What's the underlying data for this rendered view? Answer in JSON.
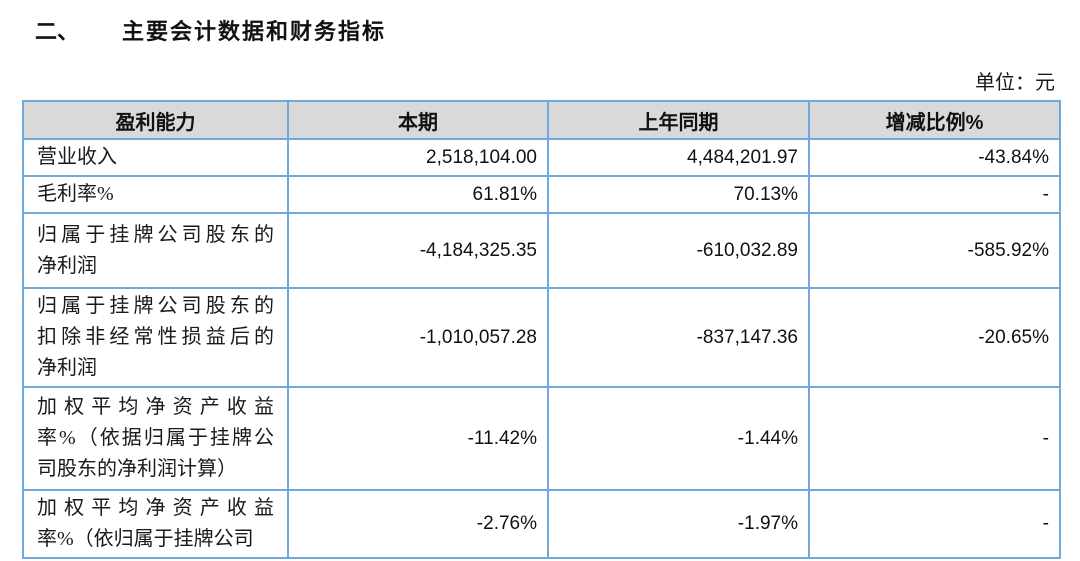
{
  "page": {
    "section_no": "二、",
    "section_title": "主要会计数据和财务指标",
    "unit_label": "单位：元"
  },
  "colors": {
    "table_border": "#6FA8DC",
    "header_background": "#D9D9D9",
    "text": "#1a1a1a"
  },
  "table": {
    "columns": [
      "盈利能力",
      "本期",
      "上年同期",
      "增减比例%"
    ],
    "rows": [
      {
        "label_lines": [
          "营业收入"
        ],
        "current": "2,518,104.00",
        "prior": "4,484,201.97",
        "change": "-43.84%"
      },
      {
        "label_lines": [
          "毛利率%"
        ],
        "current": "61.81%",
        "prior": "70.13%",
        "change": "-"
      },
      {
        "label_lines": [
          "归属于挂牌公司股东的",
          "净利润"
        ],
        "current": "-4,184,325.35",
        "prior": "-610,032.89",
        "change": "-585.92%"
      },
      {
        "label_lines": [
          "归属于挂牌公司股东的",
          "扣除非经常性损益后的",
          "净利润"
        ],
        "current": "-1,010,057.28",
        "prior": "-837,147.36",
        "change": "-20.65%"
      },
      {
        "label_lines": [
          "加权平均净资产收益",
          "率%（依据归属于挂牌公",
          "司股东的净利润计算）"
        ],
        "current": "-11.42%",
        "prior": "-1.44%",
        "change": "-"
      },
      {
        "label_lines": [
          "加权平均净资产收益",
          "率%（依归属于挂牌公司"
        ],
        "current": "-2.76%",
        "prior": "-1.97%",
        "change": "-"
      }
    ]
  }
}
